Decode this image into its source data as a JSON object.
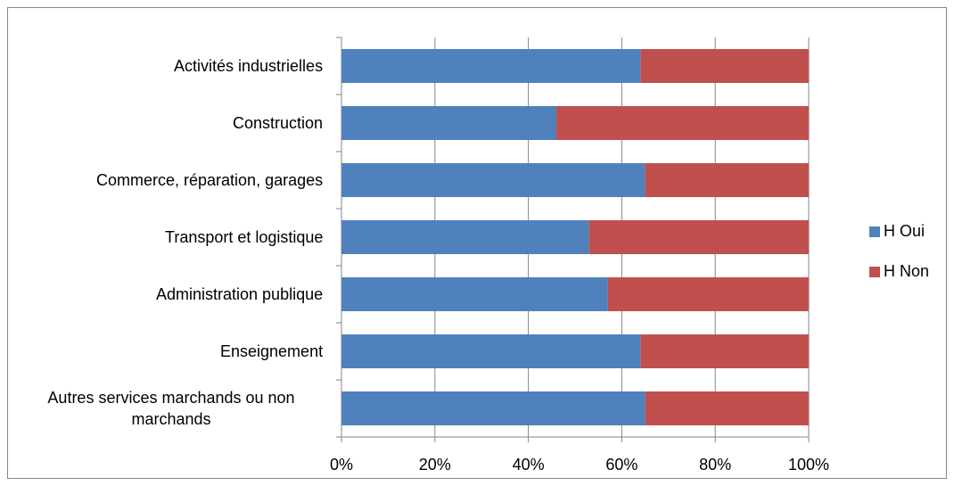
{
  "chart_data": {
    "type": "stacked-bar-horizontal",
    "categories": [
      "Activités industrielles",
      "Construction",
      "Commerce, réparation, garages",
      "Transport et logistique",
      "Administration publique",
      "Enseignement",
      "Autres services marchands ou non marchands"
    ],
    "series": [
      {
        "name": "H Oui",
        "color": "#4f81bd",
        "values": [
          64,
          46,
          65,
          53,
          57,
          64,
          65
        ]
      },
      {
        "name": "H Non",
        "color": "#c0504d",
        "values": [
          36,
          54,
          35,
          47,
          43,
          36,
          35
        ]
      }
    ],
    "xlim": [
      0,
      100
    ],
    "xticks": [
      {
        "value": 0,
        "label": "0%"
      },
      {
        "value": 20,
        "label": "20%"
      },
      {
        "value": 40,
        "label": "40%"
      },
      {
        "value": 60,
        "label": "60%"
      },
      {
        "value": 80,
        "label": "80%"
      },
      {
        "value": 100,
        "label": "100%"
      }
    ],
    "grid": true,
    "legend": "right"
  }
}
